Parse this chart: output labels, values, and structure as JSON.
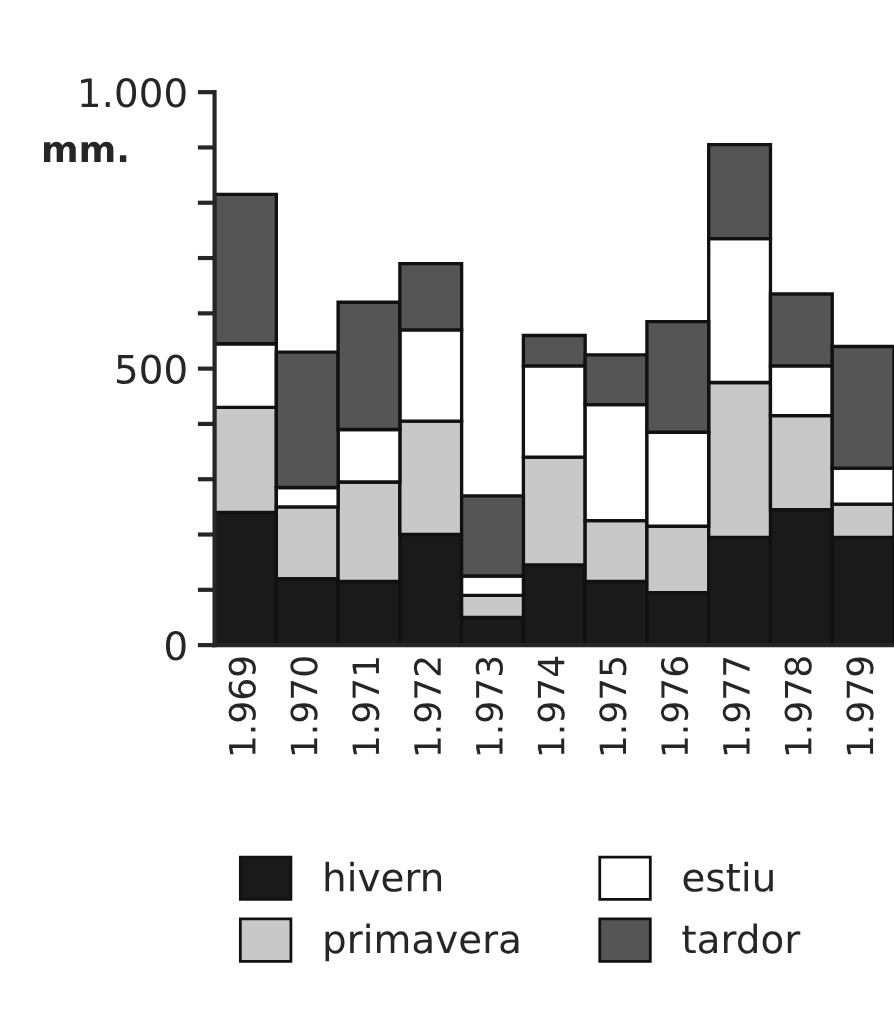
{
  "chart_data": {
    "type": "bar",
    "stacked": true,
    "ylabel": "mm.",
    "categories": [
      "1.969",
      "1.970",
      "1.971",
      "1.972",
      "1.973",
      "1.974",
      "1.975",
      "1.976",
      "1.977",
      "1.978",
      "1.979"
    ],
    "series": [
      {
        "name": "hivern",
        "color": "#1a1a1a",
        "values": [
          240,
          120,
          115,
          200,
          50,
          145,
          115,
          95,
          195,
          245,
          195
        ]
      },
      {
        "name": "primavera",
        "color": "#c8c8c8",
        "values": [
          190,
          130,
          180,
          205,
          40,
          195,
          110,
          120,
          280,
          170,
          60
        ]
      },
      {
        "name": "estiu",
        "color": "#ffffff",
        "values": [
          115,
          35,
          95,
          165,
          35,
          165,
          210,
          170,
          260,
          90,
          65
        ]
      },
      {
        "name": "tardor",
        "color": "#555555",
        "values": [
          270,
          245,
          230,
          120,
          145,
          55,
          90,
          200,
          170,
          130,
          220
        ]
      }
    ],
    "ylim": [
      0,
      1000
    ],
    "yticks": [
      0,
      {
        "value": 100,
        "label": null
      },
      {
        "value": 200,
        "label": null
      },
      {
        "value": 300,
        "label": null
      },
      {
        "value": 400,
        "label": null
      },
      500,
      {
        "value": 600,
        "label": null
      },
      {
        "value": 700,
        "label": null
      },
      {
        "value": 800,
        "label": null
      },
      {
        "value": 900,
        "label": null
      },
      {
        "value": 1000,
        "label": "1.000"
      }
    ],
    "legend": "bottom",
    "grid": false
  }
}
